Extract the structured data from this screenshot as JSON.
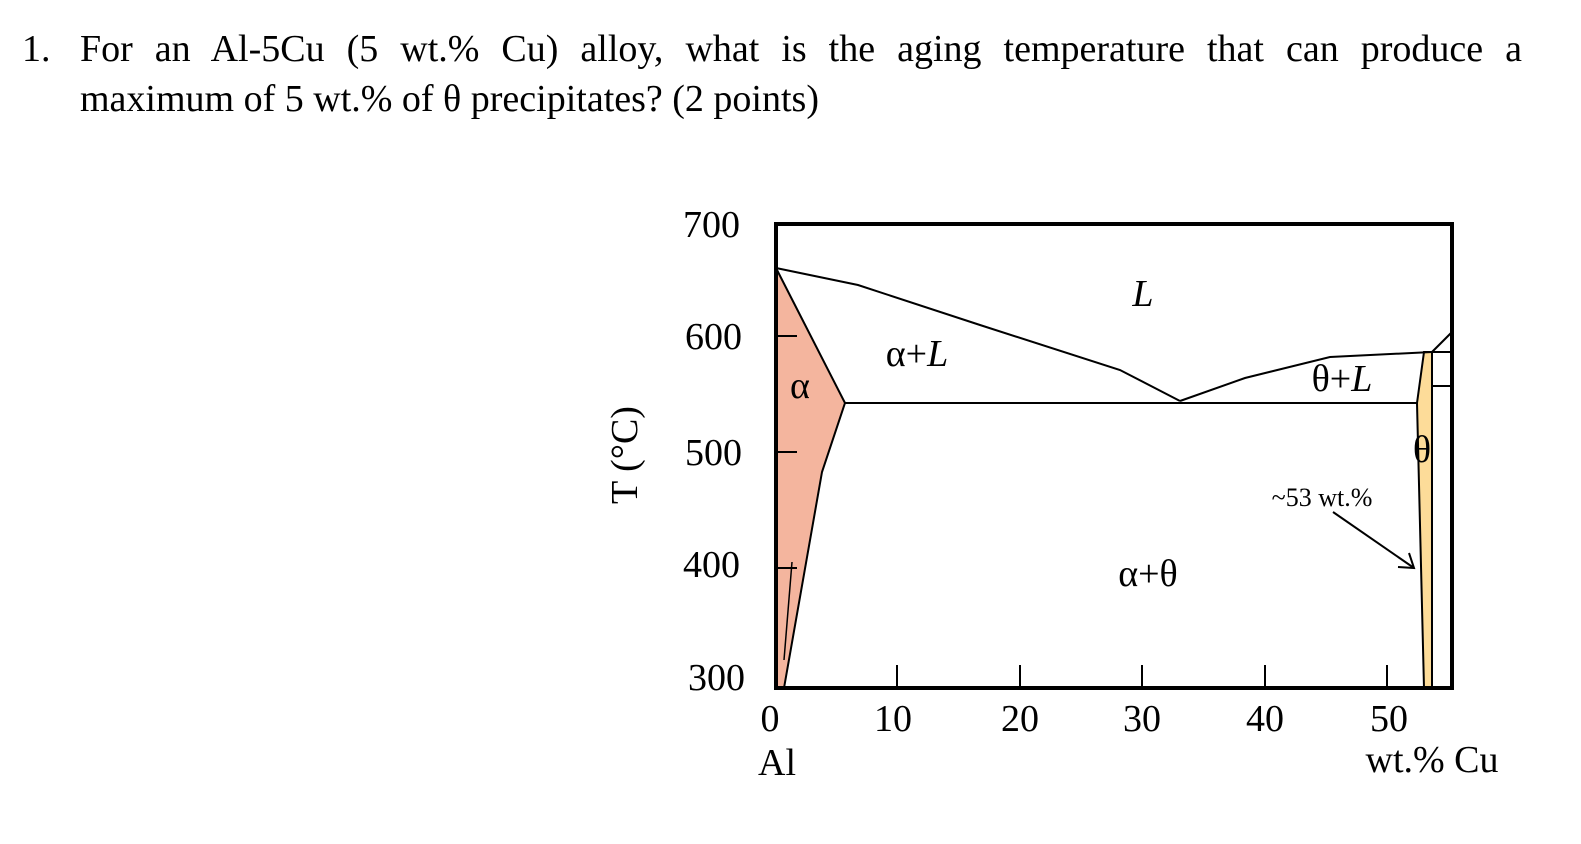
{
  "question": {
    "number": "1.",
    "line1": "For an Al-5Cu (5 wt.% Cu) alloy, what is the aging temperature that can produce a",
    "line2": "maximum of 5 wt.% of θ precipitates? (2 points)"
  },
  "diagram": {
    "y_axis_title": "T (°C)",
    "y_ticks": [
      "700",
      "600",
      "500",
      "400",
      "300"
    ],
    "x_ticks": [
      "0",
      "10",
      "20",
      "30",
      "40",
      "50"
    ],
    "x_left_label": "Al",
    "x_axis_title": "wt.% Cu",
    "regions": {
      "liquid": "L",
      "alpha_liquid": "α+L",
      "alpha": "α",
      "theta_liquid": "θ+L",
      "theta": "θ",
      "alpha_theta": "α+θ"
    },
    "annotation": "~53 wt.%",
    "colors": {
      "alpha_fill": "#f4b59e",
      "theta_fill": "#fddc99",
      "line": "#000000"
    }
  }
}
